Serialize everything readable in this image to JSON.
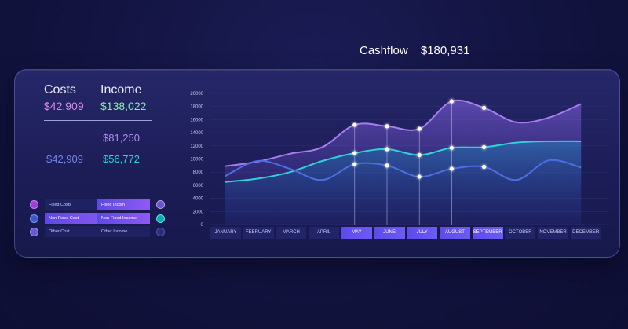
{
  "header": {
    "title": "Cashflow",
    "amount": "$180,931"
  },
  "summary": {
    "costs_label": "Costs",
    "income_label": "Income",
    "costs_total": "$42,909",
    "income_total": "$138,022",
    "fixed_income": "$81,250",
    "non_fixed_cost": "$42,909",
    "non_fixed_income": "$56,772"
  },
  "legend": {
    "costs": [
      "Fixed Costs",
      "Non-Fixed Cost",
      "Other Cost"
    ],
    "income": [
      "Fixed Incom",
      "Non-Fixed Income",
      "Other Income"
    ]
  },
  "colors": {
    "purple": "#a77cf0",
    "teal": "#2fd0d6",
    "blue": "#4c6fe6",
    "accent": "#6a55f0"
  },
  "chart_data": {
    "type": "line",
    "categories": [
      "JANUARY",
      "FEBRUARY",
      "MARCH",
      "APRIL",
      "MAY",
      "JUNE",
      "JULY",
      "AUGUST",
      "SEPTEMBER",
      "OCTOBER",
      "NOVEMBER",
      "DECEMBER"
    ],
    "selected": [
      "MAY",
      "JUNE",
      "JULY",
      "AUGUST",
      "SEPTEMBER"
    ],
    "ylim": [
      0,
      20000
    ],
    "yticks": [
      0,
      2000,
      4000,
      6000,
      8000,
      10000,
      12000,
      14000,
      16000,
      18000,
      20000
    ],
    "series": [
      {
        "name": "Purple series",
        "values": [
          8900,
          9600,
          10800,
          11800,
          15200,
          15000,
          14600,
          18800,
          17800,
          15600,
          16300,
          18400
        ]
      },
      {
        "name": "Teal series",
        "values": [
          6500,
          7000,
          8000,
          9700,
          10900,
          11500,
          10600,
          11700,
          11800,
          12500,
          12700,
          12700
        ]
      },
      {
        "name": "Blue series",
        "values": [
          7400,
          9700,
          8500,
          6800,
          9200,
          9000,
          7300,
          8500,
          8800,
          6800,
          9800,
          8700
        ]
      }
    ]
  }
}
